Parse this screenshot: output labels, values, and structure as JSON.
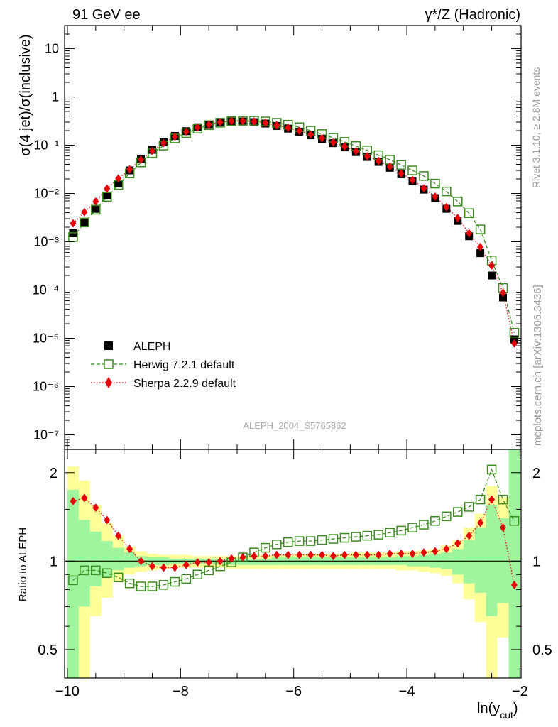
{
  "header": {
    "left": "91 GeV ee",
    "right": "γ*/Z (Hadronic)"
  },
  "side_texts": {
    "rivet": "Rivet 3.1.10, ≥ 2.8M events",
    "mcplots": "mcplots.cern.ch [arXiv:1306.3436]"
  },
  "watermark": "ALEPH_2004_S5765862",
  "colors": {
    "data": "#000000",
    "herwig": "#3a8c1e",
    "sherpa": "#e8000b",
    "band_inner": "#9ef59e",
    "band_outer": "#ffff99"
  },
  "chart_data": [
    {
      "type": "scatter",
      "ylabel": "σ(4 jet)/σ(inclusive)",
      "yscale": "log",
      "ylim": [
        5e-08,
        30
      ],
      "xlim": [
        -10.05,
        -1.98
      ],
      "ytick_labels": [
        "10",
        "1",
        "10⁻¹",
        "10⁻²",
        "10⁻³",
        "10⁻⁴",
        "10⁻⁵",
        "10⁻⁶",
        "10⁻⁷"
      ],
      "legend": {
        "position": "center-left",
        "entries": [
          "ALEPH",
          "Herwig 7.2.1 default",
          "Sherpa 2.2.9 default"
        ]
      },
      "x": [
        -9.9,
        -9.7,
        -9.5,
        -9.3,
        -9.1,
        -8.9,
        -8.7,
        -8.5,
        -8.3,
        -8.1,
        -7.9,
        -7.7,
        -7.5,
        -7.3,
        -7.1,
        -6.9,
        -6.7,
        -6.5,
        -6.3,
        -6.1,
        -5.9,
        -5.7,
        -5.5,
        -5.3,
        -5.1,
        -4.9,
        -4.7,
        -4.5,
        -4.3,
        -4.1,
        -3.9,
        -3.7,
        -3.5,
        -3.3,
        -3.1,
        -2.9,
        -2.7,
        -2.5,
        -2.3,
        -2.1
      ],
      "series": [
        {
          "name": "ALEPH",
          "marker": "filled-square",
          "values": [
            0.0015,
            0.0025,
            0.0048,
            0.009,
            0.016,
            0.03,
            0.052,
            0.08,
            0.115,
            0.155,
            0.195,
            0.235,
            0.27,
            0.3,
            0.31,
            0.31,
            0.3,
            0.28,
            0.25,
            0.22,
            0.19,
            0.16,
            0.135,
            0.11,
            0.09,
            0.072,
            0.057,
            0.045,
            0.034,
            0.025,
            0.018,
            0.012,
            0.008,
            0.0048,
            0.0027,
            0.0013,
            0.00058,
            0.0002,
            7e-05,
            9.5e-06
          ]
        },
        {
          "name": "Herwig 7.2.1 default",
          "marker": "open-square",
          "values": [
            0.00125,
            0.0025,
            0.0046,
            0.0085,
            0.015,
            0.026,
            0.044,
            0.068,
            0.098,
            0.138,
            0.178,
            0.22,
            0.26,
            0.292,
            0.315,
            0.32,
            0.32,
            0.31,
            0.29,
            0.265,
            0.235,
            0.2,
            0.17,
            0.142,
            0.117,
            0.096,
            0.078,
            0.062,
            0.05,
            0.039,
            0.03,
            0.023,
            0.016,
            0.011,
            0.0068,
            0.0039,
            0.0018,
            0.00041,
            0.00011,
            1.3e-05
          ]
        },
        {
          "name": "Sherpa 2.2.9 default",
          "marker": "filled-diamond",
          "values": [
            0.0024,
            0.0041,
            0.0068,
            0.0126,
            0.0205,
            0.0314,
            0.05,
            0.076,
            0.11,
            0.15,
            0.19,
            0.233,
            0.268,
            0.3,
            0.316,
            0.317,
            0.31,
            0.29,
            0.26,
            0.23,
            0.198,
            0.167,
            0.14,
            0.114,
            0.094,
            0.075,
            0.059,
            0.047,
            0.036,
            0.026,
            0.019,
            0.0128,
            0.0086,
            0.0052,
            0.0031,
            0.0015,
            0.00078,
            0.00032,
            8.8e-05,
            7.8e-06
          ]
        }
      ]
    },
    {
      "type": "scatter",
      "xlabel": "ln(y_cut)",
      "ylabel": "Ratio to ALEPH",
      "yscale": "log",
      "ylim": [
        0.4,
        2.4
      ],
      "xlim": [
        -10.05,
        -1.98
      ],
      "xticks": [
        -10,
        -8,
        -6,
        -4,
        -2
      ],
      "xtick_labels": [
        "−10",
        "−8",
        "−6",
        "−4",
        "−2"
      ],
      "yticks": [
        0.5,
        1,
        2
      ],
      "ytick_labels": [
        "0.5",
        "1",
        "2"
      ],
      "x": [
        -9.9,
        -9.7,
        -9.5,
        -9.3,
        -9.1,
        -8.9,
        -8.7,
        -8.5,
        -8.3,
        -8.1,
        -7.9,
        -7.7,
        -7.5,
        -7.3,
        -7.1,
        -6.9,
        -6.7,
        -6.5,
        -6.3,
        -6.1,
        -5.9,
        -5.7,
        -5.5,
        -5.3,
        -5.1,
        -4.9,
        -4.7,
        -4.5,
        -4.3,
        -4.1,
        -3.9,
        -3.7,
        -3.5,
        -3.3,
        -3.1,
        -2.9,
        -2.7,
        -2.5,
        -2.3,
        -2.1
      ],
      "series": [
        {
          "name": "Herwig 7.2.1 default",
          "values": [
            0.86,
            0.93,
            0.93,
            0.91,
            0.88,
            0.84,
            0.82,
            0.82,
            0.83,
            0.85,
            0.87,
            0.9,
            0.93,
            0.96,
            0.99,
            1.03,
            1.07,
            1.11,
            1.14,
            1.16,
            1.17,
            1.17,
            1.18,
            1.19,
            1.2,
            1.21,
            1.22,
            1.23,
            1.25,
            1.27,
            1.3,
            1.33,
            1.37,
            1.42,
            1.47,
            1.53,
            1.62,
            2.05,
            1.62,
            1.37
          ]
        },
        {
          "name": "Sherpa 2.2.9 default",
          "values": [
            1.6,
            1.64,
            1.52,
            1.38,
            1.22,
            1.1,
            1.0,
            0.96,
            0.95,
            0.95,
            0.97,
            0.99,
            0.99,
            1.0,
            1.02,
            1.03,
            1.04,
            1.04,
            1.05,
            1.05,
            1.05,
            1.05,
            1.05,
            1.04,
            1.05,
            1.05,
            1.05,
            1.05,
            1.06,
            1.06,
            1.06,
            1.07,
            1.08,
            1.1,
            1.15,
            1.22,
            1.35,
            1.62,
            1.3,
            0.83
          ]
        },
        {
          "name": "band_inner",
          "values_low": [
            0.4,
            0.7,
            0.82,
            0.88,
            0.93,
            0.95,
            0.96,
            0.97,
            0.97,
            0.98,
            0.98,
            0.98,
            0.98,
            0.98,
            0.97,
            0.97,
            0.97,
            0.97,
            0.97,
            0.97,
            0.97,
            0.97,
            0.97,
            0.97,
            0.97,
            0.97,
            0.97,
            0.97,
            0.97,
            0.97,
            0.96,
            0.96,
            0.95,
            0.94,
            0.9,
            0.84,
            0.78,
            0.65,
            0.72,
            0.4
          ],
          "values_high": [
            1.75,
            1.38,
            1.26,
            1.17,
            1.11,
            1.07,
            1.04,
            1.03,
            1.03,
            1.02,
            1.02,
            1.02,
            1.02,
            1.02,
            1.02,
            1.02,
            1.02,
            1.02,
            1.03,
            1.03,
            1.03,
            1.03,
            1.03,
            1.03,
            1.03,
            1.03,
            1.03,
            1.03,
            1.03,
            1.04,
            1.04,
            1.05,
            1.06,
            1.07,
            1.1,
            1.18,
            1.3,
            1.55,
            1.4,
            2.4
          ]
        },
        {
          "name": "band_outer",
          "values_low": [
            0.4,
            0.4,
            0.65,
            0.75,
            0.85,
            0.9,
            0.92,
            0.93,
            0.94,
            0.95,
            0.95,
            0.95,
            0.95,
            0.95,
            0.94,
            0.94,
            0.94,
            0.94,
            0.94,
            0.94,
            0.94,
            0.94,
            0.94,
            0.94,
            0.94,
            0.94,
            0.94,
            0.94,
            0.94,
            0.93,
            0.93,
            0.92,
            0.91,
            0.89,
            0.84,
            0.74,
            0.62,
            0.4,
            0.55,
            0.4
          ],
          "values_high": [
            2.1,
            1.88,
            1.55,
            1.35,
            1.22,
            1.12,
            1.08,
            1.06,
            1.05,
            1.05,
            1.05,
            1.04,
            1.04,
            1.04,
            1.04,
            1.04,
            1.05,
            1.05,
            1.05,
            1.05,
            1.06,
            1.06,
            1.06,
            1.06,
            1.06,
            1.07,
            1.07,
            1.07,
            1.07,
            1.08,
            1.08,
            1.09,
            1.1,
            1.13,
            1.18,
            1.3,
            1.45,
            1.8,
            1.65,
            2.4
          ]
        }
      ]
    }
  ]
}
